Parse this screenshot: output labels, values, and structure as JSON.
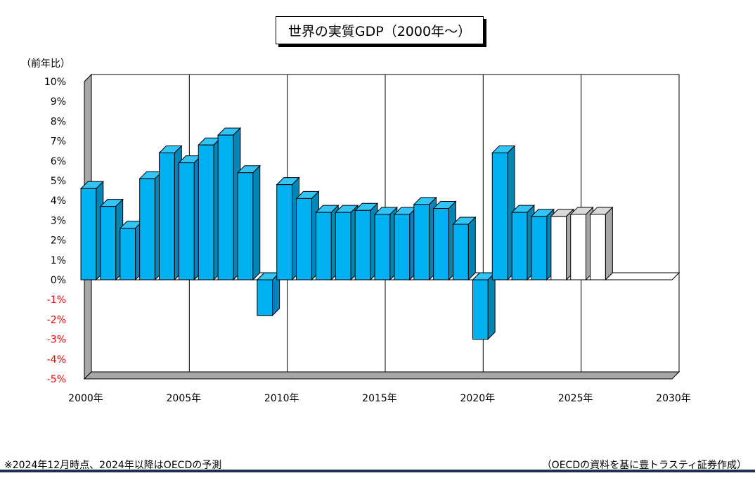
{
  "chart_data": {
    "type": "bar",
    "title": "世界の実質GDP（2000年～）",
    "ylabel": "（前年比）",
    "xlabel": "",
    "ylim": [
      -5,
      10
    ],
    "ytick_values": [
      10,
      9,
      8,
      7,
      6,
      5,
      4,
      3,
      2,
      1,
      0,
      -1,
      -2,
      -3,
      -4,
      -5
    ],
    "ytick_labels": [
      "10%",
      "9%",
      "8%",
      "7%",
      "6%",
      "5%",
      "4%",
      "3%",
      "2%",
      "1%",
      "0%",
      "-1%",
      "-2%",
      "-3%",
      "-4%",
      "-5%"
    ],
    "xtick_labels": [
      "2000年",
      "2005年",
      "2010年",
      "2015年",
      "2020年",
      "2025年",
      "2030年"
    ],
    "xlim": [
      2000,
      2030
    ],
    "grid": "vertical",
    "years": [
      2000,
      2001,
      2002,
      2003,
      2004,
      2005,
      2006,
      2007,
      2008,
      2009,
      2010,
      2011,
      2012,
      2013,
      2014,
      2015,
      2016,
      2017,
      2018,
      2019,
      2020,
      2021,
      2022,
      2023,
      2024,
      2025,
      2026
    ],
    "values": [
      4.6,
      3.7,
      2.6,
      5.1,
      6.4,
      5.9,
      6.8,
      7.3,
      5.4,
      -1.8,
      4.8,
      4.1,
      3.4,
      3.4,
      3.5,
      3.3,
      3.3,
      3.8,
      3.6,
      2.8,
      -3.0,
      6.4,
      3.4,
      3.2,
      3.2,
      3.3,
      3.3
    ],
    "forecast_from": 2024,
    "colors": {
      "actual_front": "#00b0f0",
      "actual_side": "#0086b6",
      "actual_top": "#33c4f5",
      "forecast_front": "#ffffff",
      "forecast_side": "#a6a6a6",
      "forecast_top": "#d9d9d9",
      "negative_tick": "#ff0000",
      "wall_left": "#a6a6a6",
      "floor": "#a6a6a6"
    }
  },
  "footnote": "※2024年12月時点、2024年以降はOECDの予測",
  "source": "（OECDの資料を基に豊トラスティ証券作成）"
}
